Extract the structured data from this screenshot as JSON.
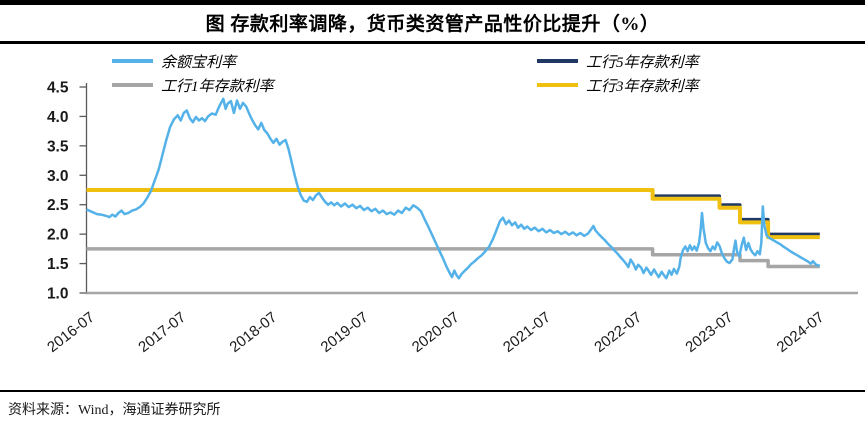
{
  "header": {
    "title": "图  存款利率调降，货币类资管产品性价比提升（%）"
  },
  "footer": {
    "source": "资料来源：Wind，海通证券研究所"
  },
  "chart_data": {
    "type": "line",
    "title": "图 存款利率调降，货币类资管产品性价比提升（%）",
    "x_unit": "months since 2016-07",
    "grid": "off",
    "legend_position": "top, two columns, two rows",
    "y_axis": {
      "min": 1.0,
      "max": 4.5,
      "step": 0.5,
      "tick_values": [
        4.5,
        4.0,
        3.5,
        3.0,
        2.5,
        2.0,
        1.5,
        1.0
      ]
    },
    "x_ticks": [
      {
        "m": 0,
        "label": "2016-07"
      },
      {
        "m": 12,
        "label": "2017-07"
      },
      {
        "m": 24,
        "label": "2018-07"
      },
      {
        "m": 36,
        "label": "2019-07"
      },
      {
        "m": 48,
        "label": "2020-07"
      },
      {
        "m": 60,
        "label": "2021-07"
      },
      {
        "m": 72,
        "label": "2022-07"
      },
      {
        "m": 84,
        "label": "2023-07"
      },
      {
        "m": 96,
        "label": "2024-07"
      }
    ],
    "legend": [
      {
        "key": "yuebao",
        "label": "余额宝利率",
        "color": "#54B2E9"
      },
      {
        "key": "icbc5y",
        "label": "工行5年存款利率",
        "color": "#1F3864"
      },
      {
        "key": "icbc1y",
        "label": "工行1年存款利率",
        "color": "#A6A6A6"
      },
      {
        "key": "icbc3y",
        "label": "工行3年存款利率",
        "color": "#F0C011"
      }
    ],
    "axis_colors": {
      "y_axis": "#595959",
      "x_axis": "#A6A6A6"
    },
    "series": [
      {
        "key": "icbc5y",
        "name": "工行5年存款利率",
        "color": "#1F3864",
        "width": 3,
        "points": [
          [
            0,
            2.75
          ],
          [
            74.5,
            2.75
          ],
          [
            74.5,
            2.65
          ],
          [
            83.3,
            2.65
          ],
          [
            83.3,
            2.5
          ],
          [
            86,
            2.5
          ],
          [
            86,
            2.25
          ],
          [
            89.7,
            2.25
          ],
          [
            89.7,
            2.0
          ],
          [
            96.5,
            2.0
          ]
        ]
      },
      {
        "key": "icbc3y",
        "name": "工行3年存款利率",
        "color": "#F0C011",
        "width": 4,
        "points": [
          [
            0,
            2.75
          ],
          [
            74.5,
            2.75
          ],
          [
            74.5,
            2.6
          ],
          [
            83.3,
            2.6
          ],
          [
            83.3,
            2.45
          ],
          [
            86,
            2.45
          ],
          [
            86,
            2.2
          ],
          [
            89.7,
            2.2
          ],
          [
            89.7,
            1.95
          ],
          [
            96.5,
            1.95
          ]
        ]
      },
      {
        "key": "icbc1y",
        "name": "工行1年存款利率",
        "color": "#A6A6A6",
        "width": 3.5,
        "points": [
          [
            0,
            1.75
          ],
          [
            74.5,
            1.75
          ],
          [
            74.5,
            1.65
          ],
          [
            86,
            1.65
          ],
          [
            86,
            1.55
          ],
          [
            89.7,
            1.55
          ],
          [
            89.7,
            1.45
          ],
          [
            96.5,
            1.45
          ]
        ]
      },
      {
        "key": "yuebao",
        "name": "余额宝利率",
        "color": "#54B2E9",
        "width": 2.5,
        "points": [
          [
            0,
            2.42
          ],
          [
            0.7,
            2.38
          ],
          [
            1.4,
            2.34
          ],
          [
            2,
            2.33
          ],
          [
            2.6,
            2.31
          ],
          [
            3,
            2.29
          ],
          [
            3.4,
            2.33
          ],
          [
            3.8,
            2.3
          ],
          [
            4.2,
            2.36
          ],
          [
            4.6,
            2.4
          ],
          [
            5,
            2.34
          ],
          [
            5.5,
            2.36
          ],
          [
            6,
            2.4
          ],
          [
            6.5,
            2.42
          ],
          [
            7,
            2.46
          ],
          [
            7.5,
            2.52
          ],
          [
            8,
            2.62
          ],
          [
            8.5,
            2.74
          ],
          [
            9,
            2.92
          ],
          [
            9.5,
            3.1
          ],
          [
            10,
            3.35
          ],
          [
            10.5,
            3.6
          ],
          [
            11,
            3.82
          ],
          [
            11.5,
            3.95
          ],
          [
            12,
            4.02
          ],
          [
            12.4,
            3.93
          ],
          [
            12.8,
            4.06
          ],
          [
            13.2,
            4.1
          ],
          [
            13.6,
            3.97
          ],
          [
            14,
            3.9
          ],
          [
            14.4,
            3.99
          ],
          [
            14.8,
            3.93
          ],
          [
            15.2,
            3.97
          ],
          [
            15.6,
            3.92
          ],
          [
            16,
            4.0
          ],
          [
            16.5,
            4.05
          ],
          [
            17,
            4.03
          ],
          [
            17.5,
            4.18
          ],
          [
            18,
            4.3
          ],
          [
            18.3,
            4.13
          ],
          [
            18.6,
            4.22
          ],
          [
            19,
            4.26
          ],
          [
            19.4,
            4.06
          ],
          [
            19.8,
            4.27
          ],
          [
            20.2,
            4.13
          ],
          [
            20.6,
            4.23
          ],
          [
            21,
            4.17
          ],
          [
            21.4,
            4.05
          ],
          [
            21.8,
            3.94
          ],
          [
            22.2,
            3.85
          ],
          [
            22.6,
            3.78
          ],
          [
            23,
            3.89
          ],
          [
            23.4,
            3.77
          ],
          [
            23.8,
            3.71
          ],
          [
            24.2,
            3.62
          ],
          [
            24.6,
            3.55
          ],
          [
            25,
            3.62
          ],
          [
            25.4,
            3.52
          ],
          [
            25.8,
            3.57
          ],
          [
            26.2,
            3.6
          ],
          [
            26.6,
            3.44
          ],
          [
            27,
            3.22
          ],
          [
            27.4,
            3.0
          ],
          [
            27.8,
            2.8
          ],
          [
            28.2,
            2.66
          ],
          [
            28.6,
            2.57
          ],
          [
            29,
            2.55
          ],
          [
            29.4,
            2.63
          ],
          [
            29.8,
            2.58
          ],
          [
            30.2,
            2.66
          ],
          [
            30.6,
            2.7
          ],
          [
            31,
            2.62
          ],
          [
            31.4,
            2.55
          ],
          [
            31.8,
            2.5
          ],
          [
            32.2,
            2.54
          ],
          [
            32.6,
            2.49
          ],
          [
            33,
            2.53
          ],
          [
            33.5,
            2.47
          ],
          [
            34,
            2.52
          ],
          [
            34.5,
            2.46
          ],
          [
            35,
            2.5
          ],
          [
            35.5,
            2.44
          ],
          [
            36,
            2.48
          ],
          [
            36.5,
            2.41
          ],
          [
            37,
            2.45
          ],
          [
            37.5,
            2.39
          ],
          [
            38,
            2.43
          ],
          [
            38.5,
            2.36
          ],
          [
            39,
            2.4
          ],
          [
            39.5,
            2.34
          ],
          [
            40,
            2.37
          ],
          [
            40.5,
            2.33
          ],
          [
            41,
            2.4
          ],
          [
            41.5,
            2.36
          ],
          [
            42,
            2.45
          ],
          [
            42.5,
            2.41
          ],
          [
            43,
            2.49
          ],
          [
            43.5,
            2.45
          ],
          [
            44,
            2.39
          ],
          [
            44.5,
            2.25
          ],
          [
            45,
            2.12
          ],
          [
            45.5,
            1.98
          ],
          [
            46,
            1.84
          ],
          [
            46.5,
            1.7
          ],
          [
            47,
            1.56
          ],
          [
            47.4,
            1.44
          ],
          [
            47.8,
            1.34
          ],
          [
            48.1,
            1.27
          ],
          [
            48.4,
            1.38
          ],
          [
            48.7,
            1.3
          ],
          [
            49,
            1.25
          ],
          [
            49.4,
            1.33
          ],
          [
            49.8,
            1.38
          ],
          [
            50.2,
            1.43
          ],
          [
            50.6,
            1.49
          ],
          [
            51,
            1.53
          ],
          [
            51.5,
            1.59
          ],
          [
            52,
            1.64
          ],
          [
            52.5,
            1.71
          ],
          [
            53,
            1.79
          ],
          [
            53.5,
            1.92
          ],
          [
            54,
            2.08
          ],
          [
            54.4,
            2.22
          ],
          [
            54.8,
            2.28
          ],
          [
            55.2,
            2.17
          ],
          [
            55.6,
            2.23
          ],
          [
            56,
            2.15
          ],
          [
            56.4,
            2.2
          ],
          [
            56.8,
            2.11
          ],
          [
            57.2,
            2.16
          ],
          [
            57.6,
            2.09
          ],
          [
            58,
            2.13
          ],
          [
            58.5,
            2.07
          ],
          [
            59,
            2.11
          ],
          [
            59.5,
            2.05
          ],
          [
            60,
            2.09
          ],
          [
            60.5,
            2.03
          ],
          [
            61,
            2.07
          ],
          [
            61.5,
            2.02
          ],
          [
            62,
            2.05
          ],
          [
            62.5,
            2.0
          ],
          [
            63,
            2.04
          ],
          [
            63.5,
            1.99
          ],
          [
            64,
            2.03
          ],
          [
            64.5,
            1.98
          ],
          [
            65,
            2.02
          ],
          [
            65.5,
            1.97
          ],
          [
            66,
            2.01
          ],
          [
            66.4,
            2.08
          ],
          [
            66.7,
            2.14
          ],
          [
            67,
            2.06
          ],
          [
            67.4,
            2.0
          ],
          [
            67.8,
            1.95
          ],
          [
            68.2,
            1.9
          ],
          [
            68.6,
            1.84
          ],
          [
            69,
            1.79
          ],
          [
            69.4,
            1.73
          ],
          [
            69.8,
            1.68
          ],
          [
            70.2,
            1.62
          ],
          [
            70.6,
            1.56
          ],
          [
            71,
            1.5
          ],
          [
            71.3,
            1.44
          ],
          [
            71.6,
            1.57
          ],
          [
            72,
            1.49
          ],
          [
            72.3,
            1.4
          ],
          [
            72.6,
            1.48
          ],
          [
            73,
            1.43
          ],
          [
            73.3,
            1.34
          ],
          [
            73.7,
            1.43
          ],
          [
            74,
            1.37
          ],
          [
            74.3,
            1.31
          ],
          [
            74.7,
            1.4
          ],
          [
            75,
            1.33
          ],
          [
            75.3,
            1.27
          ],
          [
            75.7,
            1.36
          ],
          [
            76,
            1.3
          ],
          [
            76.3,
            1.25
          ],
          [
            76.7,
            1.38
          ],
          [
            77,
            1.31
          ],
          [
            77.3,
            1.41
          ],
          [
            77.7,
            1.33
          ],
          [
            78,
            1.44
          ],
          [
            78.2,
            1.6
          ],
          [
            78.5,
            1.73
          ],
          [
            78.8,
            1.79
          ],
          [
            79.1,
            1.71
          ],
          [
            79.4,
            1.81
          ],
          [
            79.7,
            1.73
          ],
          [
            80,
            1.79
          ],
          [
            80.3,
            1.72
          ],
          [
            80.6,
            1.85
          ],
          [
            80.8,
            2.05
          ],
          [
            81,
            2.36
          ],
          [
            81.2,
            2.1
          ],
          [
            81.5,
            1.85
          ],
          [
            81.8,
            1.76
          ],
          [
            82.1,
            1.71
          ],
          [
            82.4,
            1.79
          ],
          [
            82.7,
            1.74
          ],
          [
            83,
            1.86
          ],
          [
            83.3,
            1.8
          ],
          [
            83.6,
            1.68
          ],
          [
            84,
            1.58
          ],
          [
            84.3,
            1.53
          ],
          [
            84.6,
            1.51
          ],
          [
            85,
            1.57
          ],
          [
            85.2,
            1.74
          ],
          [
            85.4,
            1.89
          ],
          [
            85.6,
            1.7
          ],
          [
            85.9,
            1.62
          ],
          [
            86.2,
            1.8
          ],
          [
            86.5,
            1.94
          ],
          [
            86.8,
            1.73
          ],
          [
            87.1,
            1.85
          ],
          [
            87.4,
            1.74
          ],
          [
            87.7,
            1.68
          ],
          [
            88,
            1.64
          ],
          [
            88.3,
            1.71
          ],
          [
            88.6,
            1.66
          ],
          [
            88.8,
            1.85
          ],
          [
            89,
            2.47
          ],
          [
            89.2,
            2.15
          ],
          [
            89.5,
            1.98
          ],
          [
            89.8,
            1.94
          ],
          [
            90.2,
            1.91
          ],
          [
            90.6,
            1.88
          ],
          [
            91,
            1.85
          ],
          [
            91.4,
            1.82
          ],
          [
            91.8,
            1.78
          ],
          [
            92.2,
            1.75
          ],
          [
            92.6,
            1.71
          ],
          [
            93,
            1.68
          ],
          [
            93.4,
            1.65
          ],
          [
            93.8,
            1.62
          ],
          [
            94.2,
            1.59
          ],
          [
            94.6,
            1.56
          ],
          [
            95,
            1.53
          ],
          [
            95.3,
            1.5
          ],
          [
            95.6,
            1.54
          ],
          [
            96,
            1.48
          ],
          [
            96.5,
            1.46
          ]
        ]
      }
    ]
  }
}
